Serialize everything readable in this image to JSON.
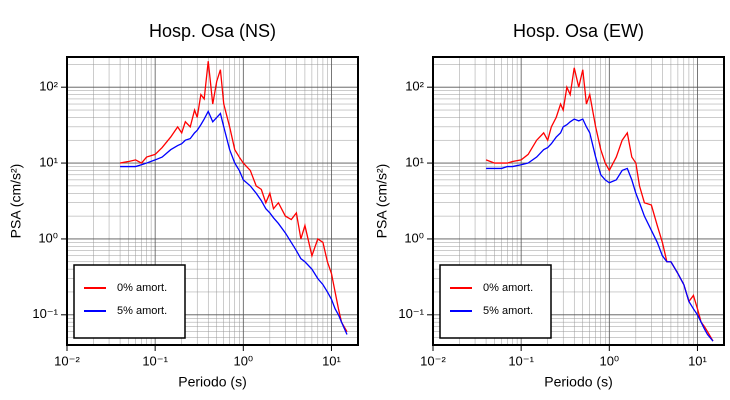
{
  "chart_data": [
    {
      "type": "line",
      "title": "Hosp. Osa (NS)",
      "xlabel": "Periodo (s)",
      "ylabel": "PSA (cm/s²)",
      "log_x": true,
      "log_y": true,
      "grid": true,
      "legend": "lower left",
      "xlim": [
        0.01,
        20
      ],
      "ylim": [
        0.04,
        250
      ],
      "xticks": [
        {
          "value": 0.01,
          "label": "10⁻²"
        },
        {
          "value": 0.1,
          "label": "10⁻¹"
        },
        {
          "value": 1,
          "label": "10⁰"
        },
        {
          "value": 10,
          "label": "10¹"
        }
      ],
      "yticks": [
        {
          "value": 0.1,
          "label": "10⁻¹"
        },
        {
          "value": 1,
          "label": "10⁰"
        },
        {
          "value": 10,
          "label": "10¹"
        },
        {
          "value": 100,
          "label": "10²"
        }
      ],
      "x": [
        0.04,
        0.05,
        0.06,
        0.07,
        0.08,
        0.1,
        0.12,
        0.15,
        0.18,
        0.2,
        0.22,
        0.25,
        0.28,
        0.3,
        0.33,
        0.36,
        0.4,
        0.45,
        0.5,
        0.55,
        0.6,
        0.7,
        0.8,
        0.9,
        1.0,
        1.2,
        1.4,
        1.6,
        1.8,
        2.0,
        2.2,
        2.5,
        3,
        3.5,
        4,
        4.5,
        5,
        6,
        7,
        8,
        9,
        10,
        11,
        12,
        13,
        15
      ],
      "series": [
        {
          "name": "0% amort.",
          "color": "#ff0000",
          "values": [
            10,
            10.5,
            11,
            10,
            12,
            13,
            16,
            22,
            30,
            25,
            35,
            30,
            50,
            40,
            80,
            70,
            220,
            60,
            120,
            170,
            60,
            30,
            15,
            12,
            10,
            8,
            5,
            4.5,
            3,
            4,
            2.5,
            3,
            2,
            1.8,
            2.2,
            1.0,
            1.5,
            0.6,
            1.0,
            0.9,
            0.5,
            0.35,
            0.2,
            0.12,
            0.08,
            0.06
          ]
        },
        {
          "name": "5% amort.",
          "color": "#0000ff",
          "values": [
            9,
            9,
            9,
            9.5,
            10,
            11,
            12,
            15,
            17,
            18,
            20,
            21,
            25,
            27,
            32,
            38,
            48,
            35,
            40,
            45,
            30,
            15,
            10,
            8,
            6,
            5,
            4,
            3.2,
            2.5,
            2.2,
            1.9,
            1.6,
            1.2,
            0.9,
            0.7,
            0.55,
            0.5,
            0.4,
            0.3,
            0.25,
            0.2,
            0.16,
            0.12,
            0.1,
            0.08,
            0.055
          ]
        }
      ]
    },
    {
      "type": "line",
      "title": "Hosp. Osa (EW)",
      "xlabel": "Periodo (s)",
      "ylabel": "PSA (cm/s²)",
      "log_x": true,
      "log_y": true,
      "grid": true,
      "legend": "lower left",
      "xlim": [
        0.01,
        20
      ],
      "ylim": [
        0.04,
        250
      ],
      "xticks": [
        {
          "value": 0.01,
          "label": "10⁻²"
        },
        {
          "value": 0.1,
          "label": "10⁻¹"
        },
        {
          "value": 1,
          "label": "10⁰"
        },
        {
          "value": 10,
          "label": "10¹"
        }
      ],
      "yticks": [
        {
          "value": 0.1,
          "label": "10⁻¹"
        },
        {
          "value": 1,
          "label": "10⁰"
        },
        {
          "value": 10,
          "label": "10¹"
        },
        {
          "value": 100,
          "label": "10²"
        }
      ],
      "x": [
        0.04,
        0.05,
        0.06,
        0.07,
        0.08,
        0.1,
        0.12,
        0.15,
        0.18,
        0.2,
        0.22,
        0.25,
        0.28,
        0.3,
        0.33,
        0.36,
        0.4,
        0.45,
        0.5,
        0.55,
        0.6,
        0.7,
        0.8,
        0.9,
        1.0,
        1.2,
        1.4,
        1.6,
        1.8,
        2.0,
        2.2,
        2.5,
        3,
        3.5,
        4,
        4.5,
        5,
        6,
        7,
        8,
        9,
        10,
        11,
        12,
        13,
        15
      ],
      "series": [
        {
          "name": "0% amort.",
          "color": "#ff0000",
          "values": [
            11,
            10,
            10,
            10,
            10.5,
            11,
            13,
            20,
            25,
            20,
            30,
            40,
            60,
            50,
            100,
            80,
            180,
            100,
            170,
            60,
            80,
            30,
            15,
            10,
            8,
            12,
            20,
            25,
            12,
            10,
            5,
            3,
            2.8,
            1.5,
            0.9,
            0.5,
            0.5,
            0.35,
            0.25,
            0.15,
            0.18,
            0.12,
            0.08,
            0.07,
            0.06,
            0.045
          ]
        },
        {
          "name": "5% amort.",
          "color": "#0000ff",
          "values": [
            8.5,
            8.5,
            8.5,
            9,
            9,
            9.5,
            10,
            12,
            15,
            16,
            18,
            22,
            25,
            30,
            32,
            35,
            38,
            36,
            38,
            30,
            25,
            12,
            7,
            6,
            5.5,
            6,
            8,
            8.5,
            6,
            4,
            3,
            2,
            1.3,
            0.9,
            0.6,
            0.5,
            0.5,
            0.35,
            0.25,
            0.15,
            0.12,
            0.1,
            0.08,
            0.065,
            0.055,
            0.045
          ]
        }
      ]
    }
  ]
}
